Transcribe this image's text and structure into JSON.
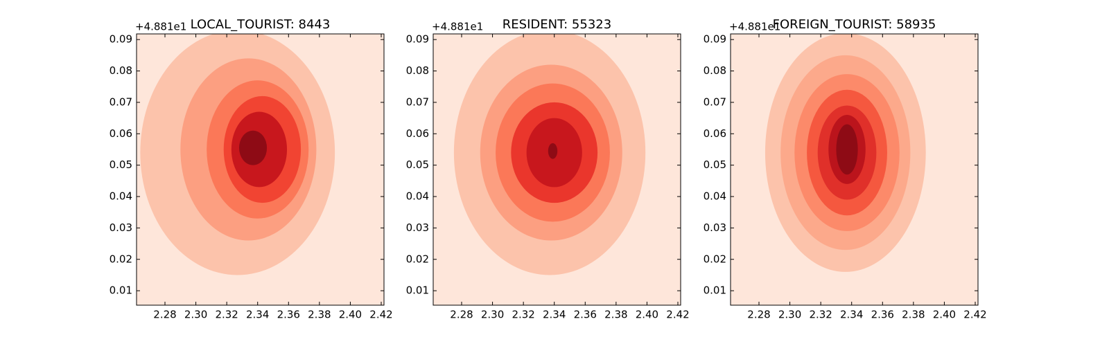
{
  "chart_data": [
    {
      "type": "contour",
      "title": "LOCAL_TOURIST: 8443",
      "y_offset_label": "+4.881e1",
      "xlim": [
        2.2616,
        2.4218
      ],
      "ylim": [
        0.0054,
        0.0918
      ],
      "xticks": [
        2.28,
        {
          "value": 2.3,
          "label": "2.30"
        },
        2.32,
        2.34,
        2.36,
        2.38,
        {
          "value": 2.4,
          "label": "2.40"
        },
        2.42
      ],
      "yticks": [
        0.01,
        0.02,
        0.03,
        0.04,
        0.05,
        0.06,
        0.07,
        0.08,
        0.09
      ],
      "background": "#fee6da",
      "contours": [
        {
          "x": 2.327,
          "y": 0.054,
          "rx": 0.063,
          "ry": 0.039,
          "color": "#fcc3ab"
        },
        {
          "x": 2.334,
          "y": 0.055,
          "rx": 0.044,
          "ry": 0.029,
          "color": "#fc9f81"
        },
        {
          "x": 2.34,
          "y": 0.055,
          "rx": 0.033,
          "ry": 0.022,
          "color": "#fb7858"
        },
        {
          "x": 2.343,
          "y": 0.055,
          "rx": 0.025,
          "ry": 0.017,
          "color": "#f14432"
        },
        {
          "x": 2.341,
          "y": 0.055,
          "rx": 0.018,
          "ry": 0.012,
          "color": "#c8171d"
        },
        {
          "x": 2.337,
          "y": 0.0555,
          "rx": 0.009,
          "ry": 0.0055,
          "color": "#8e0b15"
        }
      ]
    },
    {
      "type": "contour",
      "title": "RESIDENT: 55323",
      "y_offset_label": "+4.881e1",
      "xlim": [
        2.2616,
        2.4218
      ],
      "ylim": [
        0.0054,
        0.0918
      ],
      "xticks": [
        2.28,
        {
          "value": 2.3,
          "label": "2.30"
        },
        2.32,
        2.34,
        2.36,
        2.38,
        {
          "value": 2.4,
          "label": "2.40"
        },
        2.42
      ],
      "yticks": [
        0.01,
        0.02,
        0.03,
        0.04,
        0.05,
        0.06,
        0.07,
        0.08,
        0.09
      ],
      "background": "#fee6da",
      "contours": [
        {
          "x": 2.337,
          "y": 0.054,
          "rx": 0.062,
          "ry": 0.039,
          "color": "#fcc3ab"
        },
        {
          "x": 2.338,
          "y": 0.054,
          "rx": 0.046,
          "ry": 0.028,
          "color": "#fc9f81"
        },
        {
          "x": 2.339,
          "y": 0.054,
          "rx": 0.037,
          "ry": 0.022,
          "color": "#fb7858"
        },
        {
          "x": 2.34,
          "y": 0.054,
          "rx": 0.028,
          "ry": 0.016,
          "color": "#ea362c"
        },
        {
          "x": 2.34,
          "y": 0.054,
          "rx": 0.018,
          "ry": 0.011,
          "color": "#c8171d"
        },
        {
          "x": 2.339,
          "y": 0.0545,
          "rx": 0.003,
          "ry": 0.0025,
          "color": "#8e0b15"
        }
      ]
    },
    {
      "type": "contour",
      "title": "FOREIGN_TOURIST: 58935",
      "y_offset_label": "+4.881e1",
      "xlim": [
        2.2616,
        2.4218
      ],
      "ylim": [
        0.0054,
        0.0918
      ],
      "xticks": [
        2.28,
        {
          "value": 2.3,
          "label": "2.30"
        },
        2.32,
        2.34,
        2.36,
        2.38,
        {
          "value": 2.4,
          "label": "2.40"
        },
        2.42
      ],
      "yticks": [
        0.01,
        0.02,
        0.03,
        0.04,
        0.05,
        0.06,
        0.07,
        0.08,
        0.09
      ],
      "background": "#fee6da",
      "contours": [
        {
          "x": 2.336,
          "y": 0.054,
          "rx": 0.052,
          "ry": 0.038,
          "color": "#fcc3ab"
        },
        {
          "x": 2.336,
          "y": 0.054,
          "rx": 0.042,
          "ry": 0.031,
          "color": "#fca98b"
        },
        {
          "x": 2.337,
          "y": 0.054,
          "rx": 0.034,
          "ry": 0.025,
          "color": "#fc8a6a"
        },
        {
          "x": 2.337,
          "y": 0.054,
          "rx": 0.026,
          "ry": 0.02,
          "color": "#f5583f"
        },
        {
          "x": 2.337,
          "y": 0.054,
          "rx": 0.019,
          "ry": 0.015,
          "color": "#e0302a"
        },
        {
          "x": 2.337,
          "y": 0.055,
          "rx": 0.012,
          "ry": 0.011,
          "color": "#bb141c"
        },
        {
          "x": 2.337,
          "y": 0.055,
          "rx": 0.007,
          "ry": 0.008,
          "color": "#8e0b15"
        }
      ]
    }
  ]
}
